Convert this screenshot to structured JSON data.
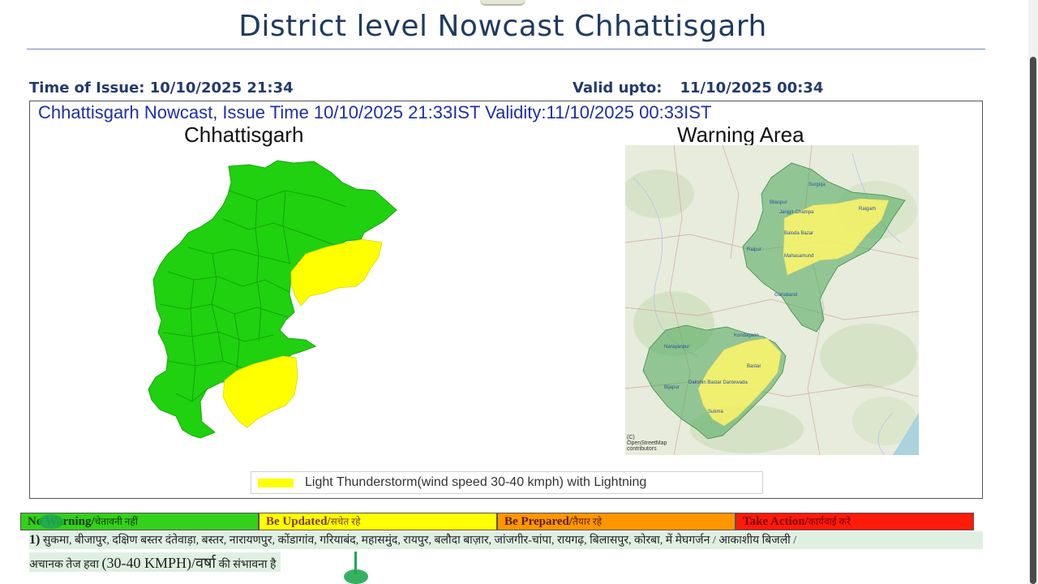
{
  "slide": {
    "title": "District level Nowcast Chhattisgarh",
    "time_of_issue": "Time of Issue: 10/10/2025 21:34",
    "valid_upto_label": "Valid upto:",
    "valid_upto_value": "11/10/2025 00:34"
  },
  "panel": {
    "header": "Chhattisgarh Nowcast, Issue Time 10/10/2025 21:33IST  Validity:11/10/2025 00:33IST",
    "left_map_title": "Chhattisgarh",
    "right_map_title": "Warning Area",
    "legend": {
      "label": "Light Thunderstorm(wind speed 30-40 kmph) with Lightning",
      "color": "#ffff00"
    },
    "osm": {
      "labels": [
        "Surguja",
        "Bilaspur",
        "Janjgir-Champa",
        "Raigarh",
        "Baloda Bazar",
        "Raipur",
        "Mahasamund",
        "Gariaband",
        "Kondagaon",
        "Narayanpur",
        "Bastar",
        "Dakshin Bastar Dantewada",
        "Bijapur",
        "Sukma"
      ],
      "credit": "(C)\nOpenStreetMap\ncontributors"
    },
    "colors": {
      "no_warning_green": "#1fd10f",
      "alert_yellow": "#ffff00"
    }
  },
  "warning_levels": [
    {
      "label": "No Warning/",
      "hindi": "चेतावनी नहीं",
      "color": "#33d11a"
    },
    {
      "label": "Be Updated/",
      "hindi": "सचेत रहे",
      "color": "#ffff00"
    },
    {
      "label": "Be Prepared/",
      "hindi": "तैयार रहे",
      "color": "#ff9600"
    },
    {
      "label": "Take Action/",
      "hindi": "कार्यवाई करें",
      "color": "#ff1a0a"
    }
  ],
  "district_text": {
    "number": "1)",
    "line1": "सुकमा, बीजापुर, दक्षिण बस्तर दंतेवाड़ा, बस्तर, नारायणपुर, कोंडागांव, गरियाबंद, महासमुंद, रायपुर, बलौदा बाज़ार, जांजगीर-चांपा, रायगढ़, बिलासपुर, कोरबा,  में मेघगर्जन / आकाशीय बिजली /",
    "line2_a": "अचानक तेज हवा ",
    "line2_b": "(30-40 KMPH)/वर्षा",
    "line2_c": "  की संभावना  है"
  }
}
